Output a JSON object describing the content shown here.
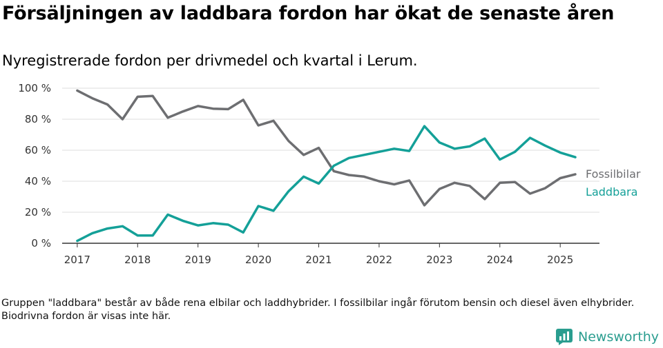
{
  "title": "Försäljningen av laddbara fordon har ökat de senaste åren",
  "subtitle": "Nyregistrerade fordon per drivmedel och kvartal i Lerum.",
  "footnote": "Gruppen \"laddbara\" består av både rena elbilar och laddhybrider. I fossilbilar ingår förutom bensin och diesel även elhybrider. Biodrivna fordon är visas inte här.",
  "brand": {
    "name": "Newsworthy",
    "icon": "newsworthy-logo-icon"
  },
  "colors": {
    "fossil": "#6d6e71",
    "laddbara": "#14a098",
    "grid": "#dddddd",
    "axis": "#333333",
    "brand": "#2a9d8f"
  },
  "chart_data": {
    "type": "line",
    "title": "Försäljningen av laddbara fordon har ökat de senaste åren",
    "xlabel": "",
    "ylabel": "",
    "x": [
      2017.0,
      2017.25,
      2017.5,
      2017.75,
      2018.0,
      2018.25,
      2018.5,
      2018.75,
      2019.0,
      2019.25,
      2019.5,
      2019.75,
      2020.0,
      2020.25,
      2020.5,
      2020.75,
      2021.0,
      2021.25,
      2021.5,
      2021.75,
      2022.0,
      2022.25,
      2022.5,
      2022.75,
      2023.0,
      2023.25,
      2023.5,
      2023.75,
      2024.0,
      2024.25,
      2024.5,
      2024.75,
      2025.0,
      2025.25
    ],
    "xlim": [
      2016.75,
      2025.65
    ],
    "x_ticks": [
      2017,
      2018,
      2019,
      2020,
      2021,
      2022,
      2023,
      2024,
      2025
    ],
    "x_tick_labels": [
      "2017",
      "2018",
      "2019",
      "2020",
      "2021",
      "2022",
      "2023",
      "2024",
      "2025"
    ],
    "ylim": [
      0,
      100
    ],
    "y_ticks": [
      0,
      20,
      40,
      60,
      80,
      100
    ],
    "y_tick_labels": [
      "0 %",
      "20 %",
      "40 %",
      "60 %",
      "80 %",
      "100 %"
    ],
    "grid": true,
    "series": [
      {
        "name": "Fossilbilar",
        "key": "fossil",
        "values": [
          98.5,
          93.5,
          89.5,
          80,
          94.5,
          95,
          81,
          85,
          88.5,
          86.8,
          86.5,
          92.5,
          76,
          79,
          66,
          57,
          61.5,
          46.5,
          44,
          43,
          40,
          38,
          40.5,
          24.5,
          35,
          39,
          37,
          28.5,
          39,
          39.5,
          32,
          35.5,
          42,
          44.5
        ]
      },
      {
        "name": "Laddbara",
        "key": "laddbara",
        "values": [
          1.5,
          6.5,
          9.5,
          11,
          5,
          5,
          18.5,
          14.5,
          11.5,
          13,
          12,
          7,
          24,
          21,
          33.5,
          43,
          38.5,
          50,
          55,
          57,
          59,
          61,
          59.5,
          75.5,
          65,
          61,
          62.5,
          67.5,
          54,
          59,
          68,
          63,
          58.5,
          55.5
        ]
      }
    ]
  }
}
